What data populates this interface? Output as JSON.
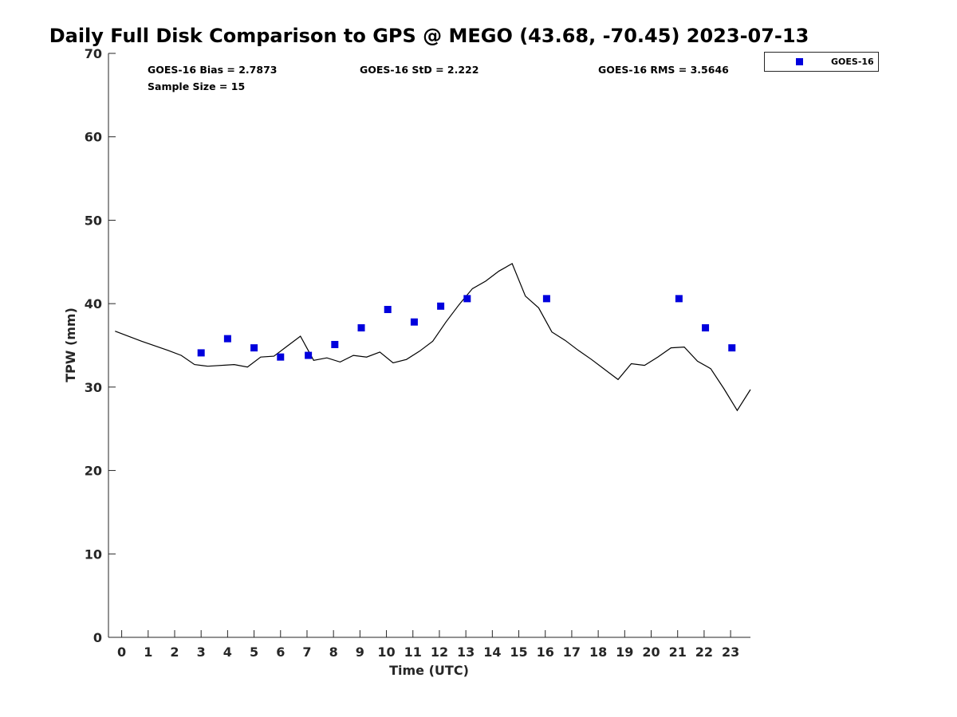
{
  "chart_data": {
    "type": "scatter",
    "title": "Daily Full Disk Comparison to GPS @ MEGO (43.68, -70.45) 2023-07-13",
    "xlabel": "Time (UTC)",
    "ylabel": "TPW (mm)",
    "xlim": [
      -0.5,
      23.75
    ],
    "ylim": [
      0,
      70
    ],
    "x_ticks": [
      "0",
      "1",
      "2",
      "3",
      "4",
      "5",
      "6",
      "7",
      "8",
      "9",
      "10",
      "11",
      "12",
      "13",
      "14",
      "15",
      "16",
      "17",
      "18",
      "19",
      "20",
      "21",
      "22",
      "23"
    ],
    "y_ticks": [
      "0",
      "10",
      "20",
      "30",
      "40",
      "50",
      "60",
      "70"
    ],
    "grid": false,
    "legend_position": "outside top-right",
    "stats": {
      "bias": "GOES-16 Bias = 2.7873",
      "std": "GOES-16 StD = 2.222",
      "rms": "GOES-16 RMS = 3.5646",
      "sample": "Sample Size = 15"
    },
    "series": [
      {
        "name": "GOES-16",
        "kind": "scatter",
        "color": "#0000dd",
        "marker": "square",
        "x": [
          3.0,
          4.0,
          5.0,
          6.0,
          7.05,
          8.05,
          9.05,
          10.05,
          11.05,
          12.05,
          13.05,
          16.05,
          21.05,
          22.05,
          23.05
        ],
        "y": [
          34.1,
          35.8,
          34.7,
          33.6,
          33.8,
          35.1,
          37.1,
          39.3,
          37.8,
          39.7,
          40.6,
          40.6,
          40.6,
          37.1,
          34.7
        ]
      },
      {
        "kind": "line",
        "color": "#000000",
        "x": [
          -0.25,
          0.75,
          1.75,
          2.25,
          2.75,
          3.25,
          4.25,
          4.75,
          5.25,
          5.75,
          6.25,
          6.75,
          7.25,
          7.75,
          8.25,
          8.75,
          9.25,
          9.75,
          10.25,
          10.75,
          11.25,
          11.75,
          12.25,
          12.75,
          13.25,
          13.75,
          14.25,
          14.75,
          15.25,
          15.75,
          16.25,
          16.75,
          17.25,
          17.75,
          18.25,
          18.75,
          19.25,
          19.75,
          20.25,
          20.75,
          21.25,
          21.75,
          22.25,
          22.75,
          23.25,
          23.75
        ],
        "y": [
          36.7,
          35.5,
          34.4,
          33.8,
          32.7,
          32.5,
          32.7,
          32.4,
          33.6,
          33.7,
          34.9,
          36.1,
          33.2,
          33.5,
          33.0,
          33.8,
          33.6,
          34.2,
          32.9,
          33.3,
          34.3,
          35.5,
          37.8,
          39.9,
          41.8,
          42.7,
          43.9,
          44.8,
          40.9,
          39.5,
          36.6,
          35.6,
          34.4,
          33.3,
          32.1,
          30.9,
          32.8,
          32.6,
          33.6,
          34.7,
          34.8,
          33.1,
          32.2,
          29.8,
          27.2,
          29.7
        ]
      }
    ]
  }
}
